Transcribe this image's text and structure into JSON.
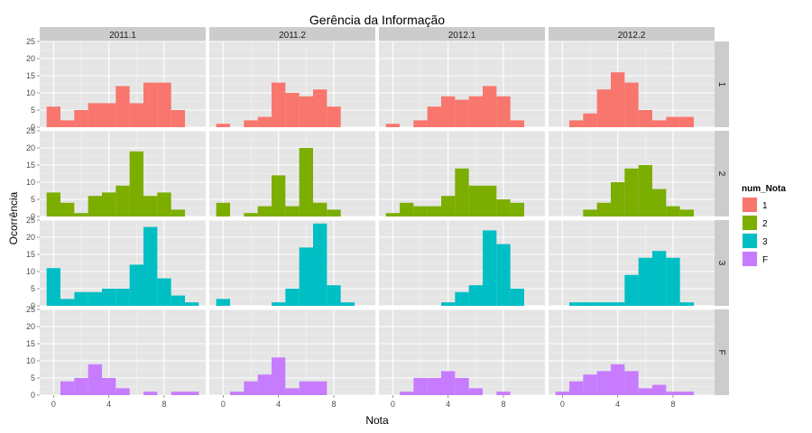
{
  "chart_data": {
    "type": "bar",
    "title": "Gerência da Informação",
    "xlabel": "Nota",
    "ylabel": "Ocorrência",
    "xlim": [
      -1,
      11
    ],
    "ylim": [
      0,
      25
    ],
    "x_ticks": [
      0,
      4,
      8
    ],
    "y_ticks": [
      0,
      5,
      10,
      15,
      20,
      25
    ],
    "bin_centers": [
      0,
      1,
      2,
      3,
      4,
      5,
      6,
      7,
      8,
      9,
      10
    ],
    "bin_width": 1,
    "grid": true,
    "columns": [
      "2011.1",
      "2011.2",
      "2012.1",
      "2012.2"
    ],
    "legend": {
      "title": "num_Nota",
      "position": "right",
      "entries": [
        {
          "key": "1",
          "label": "1",
          "color": "#F8766D"
        },
        {
          "key": "2",
          "label": "2",
          "color": "#7CAE00"
        },
        {
          "key": "3",
          "label": "3",
          "color": "#00BFC4"
        },
        {
          "key": "F",
          "label": "F",
          "color": "#C77CFF"
        }
      ]
    },
    "rows": [
      {
        "label": "1",
        "color": "#F8766D",
        "panels": [
          {
            "column": "2011.1",
            "values": [
              6,
              2,
              5,
              7,
              7,
              12,
              7,
              13,
              13,
              5,
              0
            ]
          },
          {
            "column": "2011.2",
            "values": [
              1,
              0,
              2,
              3,
              13,
              10,
              9,
              11,
              6,
              0,
              0
            ]
          },
          {
            "column": "2012.1",
            "values": [
              1,
              0,
              2,
              6,
              9,
              8,
              9,
              12,
              9,
              2,
              0
            ]
          },
          {
            "column": "2012.2",
            "values": [
              0,
              2,
              4,
              11,
              16,
              13,
              5,
              2,
              3,
              3,
              0
            ]
          }
        ]
      },
      {
        "label": "2",
        "color": "#7CAE00",
        "panels": [
          {
            "column": "2011.1",
            "values": [
              7,
              4,
              1,
              6,
              7,
              9,
              19,
              6,
              7,
              2,
              0
            ]
          },
          {
            "column": "2011.2",
            "values": [
              4,
              0,
              1,
              3,
              12,
              3,
              20,
              4,
              2,
              0,
              0
            ]
          },
          {
            "column": "2012.1",
            "values": [
              1,
              4,
              3,
              3,
              6,
              14,
              9,
              9,
              5,
              4,
              0
            ]
          },
          {
            "column": "2012.2",
            "values": [
              0,
              0,
              2,
              4,
              10,
              14,
              15,
              8,
              3,
              2,
              0
            ]
          }
        ]
      },
      {
        "label": "3",
        "color": "#00BFC4",
        "panels": [
          {
            "column": "2011.1",
            "values": [
              11,
              2,
              4,
              4,
              5,
              5,
              12,
              23,
              8,
              3,
              1
            ]
          },
          {
            "column": "2011.2",
            "values": [
              2,
              0,
              0,
              0,
              1,
              5,
              17,
              24,
              6,
              1,
              0
            ]
          },
          {
            "column": "2012.1",
            "values": [
              0,
              0,
              0,
              0,
              1,
              4,
              6,
              22,
              18,
              5,
              0
            ]
          },
          {
            "column": "2012.2",
            "values": [
              0,
              1,
              1,
              1,
              1,
              9,
              14,
              16,
              14,
              1,
              0
            ]
          }
        ]
      },
      {
        "label": "F",
        "color": "#C77CFF",
        "panels": [
          {
            "column": "2011.1",
            "values": [
              0,
              4,
              5,
              9,
              5,
              2,
              0,
              1,
              0,
              1,
              1
            ]
          },
          {
            "column": "2011.2",
            "values": [
              0,
              1,
              4,
              6,
              11,
              2,
              4,
              4,
              0,
              0,
              0
            ]
          },
          {
            "column": "2012.1",
            "values": [
              0,
              1,
              5,
              5,
              7,
              5,
              2,
              0,
              1,
              0,
              0
            ]
          },
          {
            "column": "2012.2",
            "values": [
              1,
              4,
              6,
              7,
              9,
              7,
              2,
              3,
              1,
              1,
              0
            ]
          }
        ]
      }
    ]
  }
}
